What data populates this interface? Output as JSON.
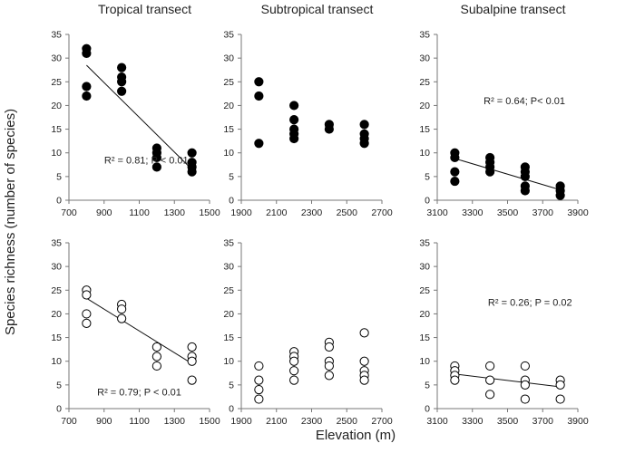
{
  "figure": {
    "ylabel": "Species richness (number of species)",
    "xlabel": "Elevation (m)"
  },
  "chart_data": [
    {
      "type": "scatter",
      "row": 1,
      "col": 1,
      "title": "Tropical transect",
      "xlabel": "Elevation (m)",
      "ylabel": "Species richness (number of species)",
      "marker": "filled",
      "xlim": [
        700,
        1500
      ],
      "ylim": [
        0,
        35
      ],
      "xticks": [
        700,
        900,
        1100,
        1300,
        1500
      ],
      "yticks": [
        0,
        5,
        10,
        15,
        20,
        25,
        30,
        35
      ],
      "points": [
        [
          800,
          32
        ],
        [
          800,
          31
        ],
        [
          800,
          24
        ],
        [
          800,
          22
        ],
        [
          1000,
          28
        ],
        [
          1000,
          26
        ],
        [
          1000,
          25
        ],
        [
          1000,
          23
        ],
        [
          1200,
          11
        ],
        [
          1200,
          10
        ],
        [
          1200,
          9
        ],
        [
          1200,
          7
        ],
        [
          1400,
          10
        ],
        [
          1400,
          8
        ],
        [
          1400,
          7
        ],
        [
          1400,
          6
        ]
      ],
      "fit": {
        "x": [
          800,
          1400
        ],
        "y": [
          28.5,
          6.5
        ]
      },
      "annotation": "R² = 0.81; P < 0.01"
    },
    {
      "type": "scatter",
      "row": 1,
      "col": 2,
      "title": "Subtropical transect",
      "xlabel": "Elevation (m)",
      "ylabel": "Species richness (number of species)",
      "marker": "filled",
      "xlim": [
        1900,
        2700
      ],
      "ylim": [
        0,
        35
      ],
      "xticks": [
        1900,
        2100,
        2300,
        2500,
        2700
      ],
      "yticks": [
        0,
        5,
        10,
        15,
        20,
        25,
        30,
        35
      ],
      "points": [
        [
          2000,
          25
        ],
        [
          2000,
          22
        ],
        [
          2000,
          12
        ],
        [
          2200,
          20
        ],
        [
          2200,
          17
        ],
        [
          2200,
          15
        ],
        [
          2200,
          14
        ],
        [
          2200,
          13
        ],
        [
          2400,
          16
        ],
        [
          2400,
          15
        ],
        [
          2600,
          16
        ],
        [
          2600,
          14
        ],
        [
          2600,
          13
        ],
        [
          2600,
          12
        ]
      ],
      "fit": null,
      "annotation": ""
    },
    {
      "type": "scatter",
      "row": 1,
      "col": 3,
      "title": "Subalpine transect",
      "xlabel": "Elevation (m)",
      "ylabel": "Species richness (number of species)",
      "marker": "filled",
      "xlim": [
        3100,
        3900
      ],
      "ylim": [
        0,
        35
      ],
      "xticks": [
        3100,
        3300,
        3500,
        3700,
        3900
      ],
      "yticks": [
        0,
        5,
        10,
        15,
        20,
        25,
        30,
        35
      ],
      "points": [
        [
          3200,
          10
        ],
        [
          3200,
          9
        ],
        [
          3200,
          6
        ],
        [
          3200,
          4
        ],
        [
          3400,
          9
        ],
        [
          3400,
          8
        ],
        [
          3400,
          7
        ],
        [
          3400,
          6
        ],
        [
          3600,
          7
        ],
        [
          3600,
          6
        ],
        [
          3600,
          5
        ],
        [
          3600,
          3
        ],
        [
          3600,
          2
        ],
        [
          3800,
          3
        ],
        [
          3800,
          2
        ],
        [
          3800,
          1
        ]
      ],
      "fit": {
        "x": [
          3200,
          3800
        ],
        "y": [
          8.8,
          2.2
        ]
      },
      "annotation": "R² = 0.64; P< 0.01"
    },
    {
      "type": "scatter",
      "row": 2,
      "col": 1,
      "title": "",
      "xlabel": "Elevation (m)",
      "ylabel": "Species richness (number of species)",
      "marker": "open",
      "xlim": [
        700,
        1500
      ],
      "ylim": [
        0,
        35
      ],
      "xticks": [
        700,
        900,
        1100,
        1300,
        1500
      ],
      "yticks": [
        0,
        5,
        10,
        15,
        20,
        25,
        30,
        35
      ],
      "points": [
        [
          800,
          25
        ],
        [
          800,
          24
        ],
        [
          800,
          20
        ],
        [
          800,
          18
        ],
        [
          1000,
          22
        ],
        [
          1000,
          21
        ],
        [
          1000,
          19
        ],
        [
          1200,
          13
        ],
        [
          1200,
          11
        ],
        [
          1200,
          9
        ],
        [
          1400,
          13
        ],
        [
          1400,
          11
        ],
        [
          1400,
          10
        ],
        [
          1400,
          6
        ]
      ],
      "fit": {
        "x": [
          800,
          1400
        ],
        "y": [
          23.3,
          9.5
        ]
      },
      "annotation": "R² = 0.79; P < 0.01"
    },
    {
      "type": "scatter",
      "row": 2,
      "col": 2,
      "title": "",
      "xlabel": "Elevation (m)",
      "ylabel": "Species richness (number of species)",
      "marker": "open",
      "xlim": [
        1900,
        2700
      ],
      "ylim": [
        0,
        35
      ],
      "xticks": [
        1900,
        2100,
        2300,
        2500,
        2700
      ],
      "yticks": [
        0,
        5,
        10,
        15,
        20,
        25,
        30,
        35
      ],
      "points": [
        [
          2000,
          9
        ],
        [
          2000,
          6
        ],
        [
          2000,
          4
        ],
        [
          2000,
          2
        ],
        [
          2200,
          12
        ],
        [
          2200,
          11
        ],
        [
          2200,
          10
        ],
        [
          2200,
          8
        ],
        [
          2200,
          6
        ],
        [
          2400,
          14
        ],
        [
          2400,
          13
        ],
        [
          2400,
          10
        ],
        [
          2400,
          9
        ],
        [
          2400,
          7
        ],
        [
          2600,
          16
        ],
        [
          2600,
          10
        ],
        [
          2600,
          8
        ],
        [
          2600,
          7
        ],
        [
          2600,
          6
        ]
      ],
      "fit": null,
      "annotation": ""
    },
    {
      "type": "scatter",
      "row": 2,
      "col": 3,
      "title": "",
      "xlabel": "Elevation (m)",
      "ylabel": "Species richness (number of species)",
      "marker": "open",
      "xlim": [
        3100,
        3900
      ],
      "ylim": [
        0,
        35
      ],
      "xticks": [
        3100,
        3300,
        3500,
        3700,
        3900
      ],
      "yticks": [
        0,
        5,
        10,
        15,
        20,
        25,
        30,
        35
      ],
      "points": [
        [
          3200,
          9
        ],
        [
          3200,
          8
        ],
        [
          3200,
          7
        ],
        [
          3200,
          6
        ],
        [
          3400,
          9
        ],
        [
          3400,
          6
        ],
        [
          3400,
          3
        ],
        [
          3600,
          9
        ],
        [
          3600,
          6
        ],
        [
          3600,
          5
        ],
        [
          3600,
          2
        ],
        [
          3800,
          6
        ],
        [
          3800,
          5
        ],
        [
          3800,
          2
        ]
      ],
      "fit": {
        "x": [
          3200,
          3800
        ],
        "y": [
          7.3,
          4.6
        ]
      },
      "annotation": "R² = 0.26; P = 0.02"
    }
  ]
}
